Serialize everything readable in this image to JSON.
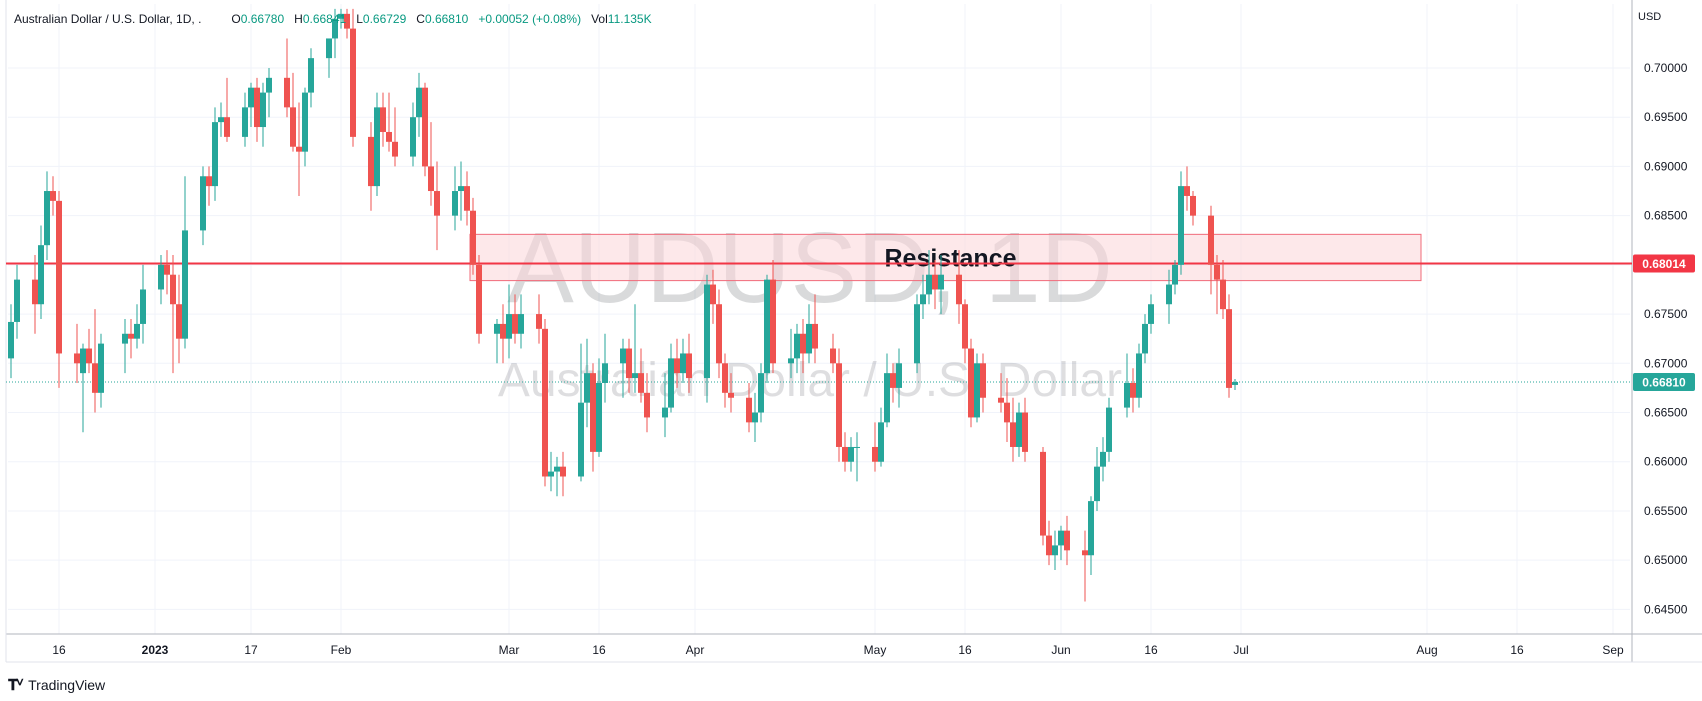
{
  "header": {
    "title": "Australian Dollar / U.S. Dollar, 1D, .",
    "o_label": "O",
    "o_value": "0.66780",
    "h_label": "H",
    "h_value": "0.66841",
    "l_label": "L",
    "l_value": "0.66729",
    "c_label": "C",
    "c_value": "0.66810",
    "change": "+0.00052 (+0.08%)",
    "vol_label": "Vol",
    "vol_value": "11.135K"
  },
  "currency": "USD",
  "brand": "TradingView",
  "watermark": {
    "symbol": "AUDUSD, 1D",
    "description": "Australian Dollar / U.S. Dollar"
  },
  "colors": {
    "up": "#26a69a",
    "down": "#ef5350",
    "resistance_line": "#f23645",
    "last_price": "#26a69a",
    "zone_fill": "#fbd5d9",
    "zone_stroke": "#f06b7a"
  },
  "chart_data": {
    "type": "candlestick",
    "instrument": "AUDUSD",
    "ylim": [
      0.6425,
      0.7065
    ],
    "y_ticks": [
      "0.70000",
      "0.69500",
      "0.69000",
      "0.68500",
      "0.68000",
      "0.67500",
      "0.67000",
      "0.66500",
      "0.66000",
      "0.65500",
      "0.65000",
      "0.64500"
    ],
    "x_ticks": [
      "16",
      "2023",
      "17",
      "Feb",
      "Mar",
      "16",
      "Apr",
      "May",
      "16",
      "Jun",
      "16",
      "Jul",
      "Aug",
      "16",
      "Sep"
    ],
    "resistance_level": 0.68014,
    "resistance_label": "0.68014",
    "resistance_zone": {
      "label": "Resistance",
      "from": 0.6784,
      "to": 0.6831,
      "start_date": "2023-02-23",
      "end_date": "2023-07-31"
    },
    "last_price": 0.6681,
    "last_price_label": "0.66810",
    "candles": [
      {
        "d": "2022-12-08",
        "o": 0.6705,
        "h": 0.676,
        "l": 0.6685,
        "c": 0.6742
      },
      {
        "d": "2022-12-09",
        "o": 0.6742,
        "h": 0.68,
        "l": 0.6725,
        "c": 0.6785
      },
      {
        "d": "2022-12-12",
        "o": 0.6785,
        "h": 0.681,
        "l": 0.673,
        "c": 0.676
      },
      {
        "d": "2022-12-13",
        "o": 0.676,
        "h": 0.684,
        "l": 0.6745,
        "c": 0.682
      },
      {
        "d": "2022-12-14",
        "o": 0.682,
        "h": 0.6895,
        "l": 0.6805,
        "c": 0.6875
      },
      {
        "d": "2022-12-15",
        "o": 0.6875,
        "h": 0.689,
        "l": 0.685,
        "c": 0.6865
      },
      {
        "d": "2022-12-16",
        "o": 0.6865,
        "h": 0.6875,
        "l": 0.6675,
        "c": 0.671
      },
      {
        "d": "2022-12-19",
        "o": 0.671,
        "h": 0.674,
        "l": 0.668,
        "c": 0.67
      },
      {
        "d": "2022-12-20",
        "o": 0.669,
        "h": 0.672,
        "l": 0.663,
        "c": 0.6715
      },
      {
        "d": "2022-12-21",
        "o": 0.6715,
        "h": 0.6735,
        "l": 0.669,
        "c": 0.67
      },
      {
        "d": "2022-12-22",
        "o": 0.67,
        "h": 0.6755,
        "l": 0.665,
        "c": 0.667
      },
      {
        "d": "2022-12-23",
        "o": 0.667,
        "h": 0.673,
        "l": 0.6655,
        "c": 0.672
      },
      {
        "d": "2022-12-27",
        "o": 0.672,
        "h": 0.6745,
        "l": 0.669,
        "c": 0.673
      },
      {
        "d": "2022-12-28",
        "o": 0.673,
        "h": 0.6745,
        "l": 0.6705,
        "c": 0.6725
      },
      {
        "d": "2022-12-29",
        "o": 0.6725,
        "h": 0.676,
        "l": 0.6715,
        "c": 0.674
      },
      {
        "d": "2022-12-30",
        "o": 0.674,
        "h": 0.68,
        "l": 0.672,
        "c": 0.6775
      },
      {
        "d": "2023-01-02",
        "o": 0.6775,
        "h": 0.681,
        "l": 0.676,
        "c": 0.68
      },
      {
        "d": "2023-01-03",
        "o": 0.68,
        "h": 0.6815,
        "l": 0.677,
        "c": 0.679
      },
      {
        "d": "2023-01-04",
        "o": 0.679,
        "h": 0.681,
        "l": 0.669,
        "c": 0.676
      },
      {
        "d": "2023-01-05",
        "o": 0.676,
        "h": 0.679,
        "l": 0.67,
        "c": 0.6725
      },
      {
        "d": "2023-01-06",
        "o": 0.6725,
        "h": 0.689,
        "l": 0.6715,
        "c": 0.6835
      },
      {
        "d": "2023-01-09",
        "o": 0.6835,
        "h": 0.69,
        "l": 0.682,
        "c": 0.689
      },
      {
        "d": "2023-01-10",
        "o": 0.689,
        "h": 0.69,
        "l": 0.686,
        "c": 0.688
      },
      {
        "d": "2023-01-11",
        "o": 0.688,
        "h": 0.696,
        "l": 0.6865,
        "c": 0.6945
      },
      {
        "d": "2023-01-12",
        "o": 0.6945,
        "h": 0.6965,
        "l": 0.693,
        "c": 0.695
      },
      {
        "d": "2023-01-13",
        "o": 0.695,
        "h": 0.699,
        "l": 0.6925,
        "c": 0.693
      },
      {
        "d": "2023-01-16",
        "o": 0.693,
        "h": 0.6975,
        "l": 0.692,
        "c": 0.696
      },
      {
        "d": "2023-01-17",
        "o": 0.696,
        "h": 0.6985,
        "l": 0.694,
        "c": 0.698
      },
      {
        "d": "2023-01-18",
        "o": 0.698,
        "h": 0.699,
        "l": 0.6925,
        "c": 0.694
      },
      {
        "d": "2023-01-19",
        "o": 0.694,
        "h": 0.6985,
        "l": 0.692,
        "c": 0.6975
      },
      {
        "d": "2023-01-20",
        "o": 0.6975,
        "h": 0.7,
        "l": 0.695,
        "c": 0.699
      },
      {
        "d": "2023-01-23",
        "o": 0.699,
        "h": 0.703,
        "l": 0.695,
        "c": 0.696
      },
      {
        "d": "2023-01-24",
        "o": 0.696,
        "h": 0.6995,
        "l": 0.6915,
        "c": 0.692
      },
      {
        "d": "2023-01-25",
        "o": 0.692,
        "h": 0.6965,
        "l": 0.687,
        "c": 0.6915
      },
      {
        "d": "2023-01-26",
        "o": 0.6915,
        "h": 0.698,
        "l": 0.69,
        "c": 0.6975
      },
      {
        "d": "2023-01-27",
        "o": 0.6975,
        "h": 0.702,
        "l": 0.696,
        "c": 0.701
      },
      {
        "d": "2023-01-30",
        "o": 0.701,
        "h": 0.703,
        "l": 0.699,
        "c": 0.703
      },
      {
        "d": "2023-01-31",
        "o": 0.703,
        "h": 0.706,
        "l": 0.701,
        "c": 0.705
      },
      {
        "d": "2023-02-01",
        "o": 0.705,
        "h": 0.706,
        "l": 0.704,
        "c": 0.7055
      },
      {
        "d": "2023-02-02",
        "o": 0.7055,
        "h": 0.706,
        "l": 0.703,
        "c": 0.704
      },
      {
        "d": "2023-02-03",
        "o": 0.704,
        "h": 0.706,
        "l": 0.692,
        "c": 0.693
      },
      {
        "d": "2023-02-06",
        "o": 0.693,
        "h": 0.6945,
        "l": 0.6855,
        "c": 0.688
      },
      {
        "d": "2023-02-07",
        "o": 0.688,
        "h": 0.6975,
        "l": 0.687,
        "c": 0.696
      },
      {
        "d": "2023-02-08",
        "o": 0.696,
        "h": 0.6975,
        "l": 0.692,
        "c": 0.6935
      },
      {
        "d": "2023-02-09",
        "o": 0.6935,
        "h": 0.6975,
        "l": 0.6915,
        "c": 0.6925
      },
      {
        "d": "2023-02-10",
        "o": 0.6925,
        "h": 0.696,
        "l": 0.69,
        "c": 0.691
      },
      {
        "d": "2023-02-13",
        "o": 0.691,
        "h": 0.6965,
        "l": 0.69,
        "c": 0.695
      },
      {
        "d": "2023-02-14",
        "o": 0.695,
        "h": 0.6995,
        "l": 0.693,
        "c": 0.698
      },
      {
        "d": "2023-02-15",
        "o": 0.698,
        "h": 0.6985,
        "l": 0.689,
        "c": 0.69
      },
      {
        "d": "2023-02-16",
        "o": 0.69,
        "h": 0.6945,
        "l": 0.686,
        "c": 0.6875
      },
      {
        "d": "2023-02-17",
        "o": 0.6875,
        "h": 0.6905,
        "l": 0.6815,
        "c": 0.685
      },
      {
        "d": "2023-02-20",
        "o": 0.685,
        "h": 0.69,
        "l": 0.6835,
        "c": 0.6875
      },
      {
        "d": "2023-02-21",
        "o": 0.6875,
        "h": 0.6905,
        "l": 0.6845,
        "c": 0.688
      },
      {
        "d": "2023-02-22",
        "o": 0.688,
        "h": 0.6895,
        "l": 0.684,
        "c": 0.6855
      },
      {
        "d": "2023-02-23",
        "o": 0.6855,
        "h": 0.6868,
        "l": 0.679,
        "c": 0.68
      },
      {
        "d": "2023-02-24",
        "o": 0.68,
        "h": 0.681,
        "l": 0.672,
        "c": 0.673
      },
      {
        "d": "2023-02-27",
        "o": 0.673,
        "h": 0.6745,
        "l": 0.67,
        "c": 0.674
      },
      {
        "d": "2023-02-28",
        "o": 0.674,
        "h": 0.676,
        "l": 0.67,
        "c": 0.6725
      },
      {
        "d": "2023-03-01",
        "o": 0.6725,
        "h": 0.678,
        "l": 0.6705,
        "c": 0.675
      },
      {
        "d": "2023-03-02",
        "o": 0.675,
        "h": 0.677,
        "l": 0.672,
        "c": 0.673
      },
      {
        "d": "2023-03-03",
        "o": 0.673,
        "h": 0.677,
        "l": 0.6715,
        "c": 0.675
      },
      {
        "d": "2023-03-06",
        "o": 0.675,
        "h": 0.677,
        "l": 0.672,
        "c": 0.6735
      },
      {
        "d": "2023-03-07",
        "o": 0.6735,
        "h": 0.6745,
        "l": 0.6575,
        "c": 0.6585
      },
      {
        "d": "2023-03-08",
        "o": 0.6585,
        "h": 0.661,
        "l": 0.657,
        "c": 0.659
      },
      {
        "d": "2023-03-09",
        "o": 0.659,
        "h": 0.6605,
        "l": 0.6565,
        "c": 0.6595
      },
      {
        "d": "2023-03-10",
        "o": 0.6595,
        "h": 0.661,
        "l": 0.6565,
        "c": 0.6585
      },
      {
        "d": "2023-03-13",
        "o": 0.6585,
        "h": 0.672,
        "l": 0.658,
        "c": 0.666
      },
      {
        "d": "2023-03-14",
        "o": 0.666,
        "h": 0.6725,
        "l": 0.6635,
        "c": 0.669
      },
      {
        "d": "2023-03-15",
        "o": 0.669,
        "h": 0.67,
        "l": 0.659,
        "c": 0.661
      },
      {
        "d": "2023-03-16",
        "o": 0.661,
        "h": 0.6705,
        "l": 0.6605,
        "c": 0.668
      },
      {
        "d": "2023-03-17",
        "o": 0.668,
        "h": 0.673,
        "l": 0.666,
        "c": 0.67
      },
      {
        "d": "2023-03-20",
        "o": 0.67,
        "h": 0.6725,
        "l": 0.6665,
        "c": 0.6715
      },
      {
        "d": "2023-03-21",
        "o": 0.6715,
        "h": 0.6725,
        "l": 0.667,
        "c": 0.6685
      },
      {
        "d": "2023-03-22",
        "o": 0.6685,
        "h": 0.676,
        "l": 0.667,
        "c": 0.669
      },
      {
        "d": "2023-03-23",
        "o": 0.669,
        "h": 0.6715,
        "l": 0.666,
        "c": 0.667
      },
      {
        "d": "2023-03-24",
        "o": 0.667,
        "h": 0.669,
        "l": 0.663,
        "c": 0.6645
      },
      {
        "d": "2023-03-27",
        "o": 0.6645,
        "h": 0.669,
        "l": 0.6625,
        "c": 0.6655
      },
      {
        "d": "2023-03-28",
        "o": 0.6655,
        "h": 0.672,
        "l": 0.665,
        "c": 0.6705
      },
      {
        "d": "2023-03-29",
        "o": 0.6705,
        "h": 0.6725,
        "l": 0.6675,
        "c": 0.669
      },
      {
        "d": "2023-03-30",
        "o": 0.669,
        "h": 0.6725,
        "l": 0.668,
        "c": 0.671
      },
      {
        "d": "2023-03-31",
        "o": 0.671,
        "h": 0.673,
        "l": 0.667,
        "c": 0.6685
      },
      {
        "d": "2023-04-03",
        "o": 0.6685,
        "h": 0.679,
        "l": 0.666,
        "c": 0.678
      },
      {
        "d": "2023-04-04",
        "o": 0.678,
        "h": 0.6795,
        "l": 0.674,
        "c": 0.676
      },
      {
        "d": "2023-04-05",
        "o": 0.676,
        "h": 0.6775,
        "l": 0.6685,
        "c": 0.67
      },
      {
        "d": "2023-04-06",
        "o": 0.67,
        "h": 0.671,
        "l": 0.6655,
        "c": 0.667
      },
      {
        "d": "2023-04-07",
        "o": 0.667,
        "h": 0.669,
        "l": 0.665,
        "c": 0.6665
      },
      {
        "d": "2023-04-10",
        "o": 0.6665,
        "h": 0.668,
        "l": 0.663,
        "c": 0.664
      },
      {
        "d": "2023-04-11",
        "o": 0.664,
        "h": 0.667,
        "l": 0.662,
        "c": 0.665
      },
      {
        "d": "2023-04-12",
        "o": 0.665,
        "h": 0.67,
        "l": 0.664,
        "c": 0.669
      },
      {
        "d": "2023-04-13",
        "o": 0.669,
        "h": 0.679,
        "l": 0.668,
        "c": 0.6785
      },
      {
        "d": "2023-04-14",
        "o": 0.6785,
        "h": 0.6805,
        "l": 0.669,
        "c": 0.67
      },
      {
        "d": "2023-04-17",
        "o": 0.67,
        "h": 0.6735,
        "l": 0.6685,
        "c": 0.6705
      },
      {
        "d": "2023-04-18",
        "o": 0.6705,
        "h": 0.674,
        "l": 0.669,
        "c": 0.673
      },
      {
        "d": "2023-04-19",
        "o": 0.673,
        "h": 0.6745,
        "l": 0.669,
        "c": 0.671
      },
      {
        "d": "2023-04-20",
        "o": 0.671,
        "h": 0.676,
        "l": 0.67,
        "c": 0.674
      },
      {
        "d": "2023-04-21",
        "o": 0.674,
        "h": 0.677,
        "l": 0.67,
        "c": 0.6715
      },
      {
        "d": "2023-04-24",
        "o": 0.6715,
        "h": 0.673,
        "l": 0.669,
        "c": 0.67
      },
      {
        "d": "2023-04-25",
        "o": 0.67,
        "h": 0.6715,
        "l": 0.66,
        "c": 0.6615
      },
      {
        "d": "2023-04-26",
        "o": 0.6615,
        "h": 0.663,
        "l": 0.659,
        "c": 0.66
      },
      {
        "d": "2023-04-27",
        "o": 0.66,
        "h": 0.6625,
        "l": 0.659,
        "c": 0.6615
      },
      {
        "d": "2023-04-28",
        "o": 0.6615,
        "h": 0.663,
        "l": 0.658,
        "c": 0.6615
      },
      {
        "d": "2023-05-01",
        "o": 0.6615,
        "h": 0.664,
        "l": 0.659,
        "c": 0.66
      },
      {
        "d": "2023-05-02",
        "o": 0.66,
        "h": 0.6655,
        "l": 0.6595,
        "c": 0.664
      },
      {
        "d": "2023-05-03",
        "o": 0.664,
        "h": 0.671,
        "l": 0.6635,
        "c": 0.669
      },
      {
        "d": "2023-05-04",
        "o": 0.669,
        "h": 0.67,
        "l": 0.666,
        "c": 0.6675
      },
      {
        "d": "2023-05-05",
        "o": 0.6675,
        "h": 0.6715,
        "l": 0.6655,
        "c": 0.67
      },
      {
        "d": "2023-05-08",
        "o": 0.67,
        "h": 0.677,
        "l": 0.669,
        "c": 0.676
      },
      {
        "d": "2023-05-09",
        "o": 0.676,
        "h": 0.679,
        "l": 0.6745,
        "c": 0.677
      },
      {
        "d": "2023-05-10",
        "o": 0.677,
        "h": 0.6815,
        "l": 0.676,
        "c": 0.679
      },
      {
        "d": "2023-05-11",
        "o": 0.679,
        "h": 0.6805,
        "l": 0.6755,
        "c": 0.6775
      },
      {
        "d": "2023-05-12",
        "o": 0.6775,
        "h": 0.681,
        "l": 0.675,
        "c": 0.679
      },
      {
        "d": "2023-05-15",
        "o": 0.679,
        "h": 0.6815,
        "l": 0.674,
        "c": 0.676
      },
      {
        "d": "2023-05-16",
        "o": 0.676,
        "h": 0.6765,
        "l": 0.67,
        "c": 0.6715
      },
      {
        "d": "2023-05-17",
        "o": 0.6715,
        "h": 0.6725,
        "l": 0.6635,
        "c": 0.6645
      },
      {
        "d": "2023-05-18",
        "o": 0.6645,
        "h": 0.671,
        "l": 0.664,
        "c": 0.67
      },
      {
        "d": "2023-05-19",
        "o": 0.67,
        "h": 0.671,
        "l": 0.665,
        "c": 0.6665
      },
      {
        "d": "2023-05-22",
        "o": 0.6665,
        "h": 0.669,
        "l": 0.665,
        "c": 0.666
      },
      {
        "d": "2023-05-23",
        "o": 0.666,
        "h": 0.6685,
        "l": 0.662,
        "c": 0.664
      },
      {
        "d": "2023-05-24",
        "o": 0.664,
        "h": 0.6665,
        "l": 0.66,
        "c": 0.6615
      },
      {
        "d": "2023-05-25",
        "o": 0.6615,
        "h": 0.666,
        "l": 0.6605,
        "c": 0.665
      },
      {
        "d": "2023-05-26",
        "o": 0.665,
        "h": 0.6665,
        "l": 0.66,
        "c": 0.661
      },
      {
        "d": "2023-05-29",
        "o": 0.661,
        "h": 0.6615,
        "l": 0.6515,
        "c": 0.6525
      },
      {
        "d": "2023-05-30",
        "o": 0.6525,
        "h": 0.654,
        "l": 0.6495,
        "c": 0.6505
      },
      {
        "d": "2023-05-31",
        "o": 0.6505,
        "h": 0.653,
        "l": 0.649,
        "c": 0.6515
      },
      {
        "d": "2023-06-01",
        "o": 0.6515,
        "h": 0.6535,
        "l": 0.65,
        "c": 0.653
      },
      {
        "d": "2023-06-02",
        "o": 0.653,
        "h": 0.6545,
        "l": 0.6495,
        "c": 0.651
      },
      {
        "d": "2023-06-05",
        "o": 0.651,
        "h": 0.653,
        "l": 0.6458,
        "c": 0.6505
      },
      {
        "d": "2023-06-06",
        "o": 0.6505,
        "h": 0.6565,
        "l": 0.6485,
        "c": 0.656
      },
      {
        "d": "2023-06-07",
        "o": 0.656,
        "h": 0.6615,
        "l": 0.655,
        "c": 0.6595
      },
      {
        "d": "2023-06-08",
        "o": 0.6595,
        "h": 0.6625,
        "l": 0.658,
        "c": 0.661
      },
      {
        "d": "2023-06-09",
        "o": 0.661,
        "h": 0.6665,
        "l": 0.66,
        "c": 0.6655
      },
      {
        "d": "2023-06-12",
        "o": 0.6655,
        "h": 0.671,
        "l": 0.6645,
        "c": 0.668
      },
      {
        "d": "2023-06-13",
        "o": 0.668,
        "h": 0.6695,
        "l": 0.665,
        "c": 0.6665
      },
      {
        "d": "2023-06-14",
        "o": 0.6665,
        "h": 0.672,
        "l": 0.6655,
        "c": 0.671
      },
      {
        "d": "2023-06-15",
        "o": 0.671,
        "h": 0.675,
        "l": 0.67,
        "c": 0.674
      },
      {
        "d": "2023-06-16",
        "o": 0.674,
        "h": 0.677,
        "l": 0.673,
        "c": 0.676
      },
      {
        "d": "2023-06-19",
        "o": 0.676,
        "h": 0.6795,
        "l": 0.674,
        "c": 0.678
      },
      {
        "d": "2023-06-20",
        "o": 0.678,
        "h": 0.6805,
        "l": 0.677,
        "c": 0.68
      },
      {
        "d": "2023-06-21",
        "o": 0.68,
        "h": 0.6895,
        "l": 0.679,
        "c": 0.688
      },
      {
        "d": "2023-06-22",
        "o": 0.688,
        "h": 0.69,
        "l": 0.6855,
        "c": 0.687
      },
      {
        "d": "2023-06-23",
        "o": 0.687,
        "h": 0.6875,
        "l": 0.684,
        "c": 0.685
      },
      {
        "d": "2023-06-26",
        "o": 0.685,
        "h": 0.686,
        "l": 0.677,
        "c": 0.68
      },
      {
        "d": "2023-06-27",
        "o": 0.68,
        "h": 0.681,
        "l": 0.675,
        "c": 0.6785
      },
      {
        "d": "2023-06-28",
        "o": 0.6785,
        "h": 0.6805,
        "l": 0.6745,
        "c": 0.6755
      },
      {
        "d": "2023-06-29",
        "o": 0.6755,
        "h": 0.677,
        "l": 0.6665,
        "c": 0.6675
      },
      {
        "d": "2023-06-30",
        "o": 0.6678,
        "h": 0.66841,
        "l": 0.66729,
        "c": 0.6681
      }
    ]
  }
}
